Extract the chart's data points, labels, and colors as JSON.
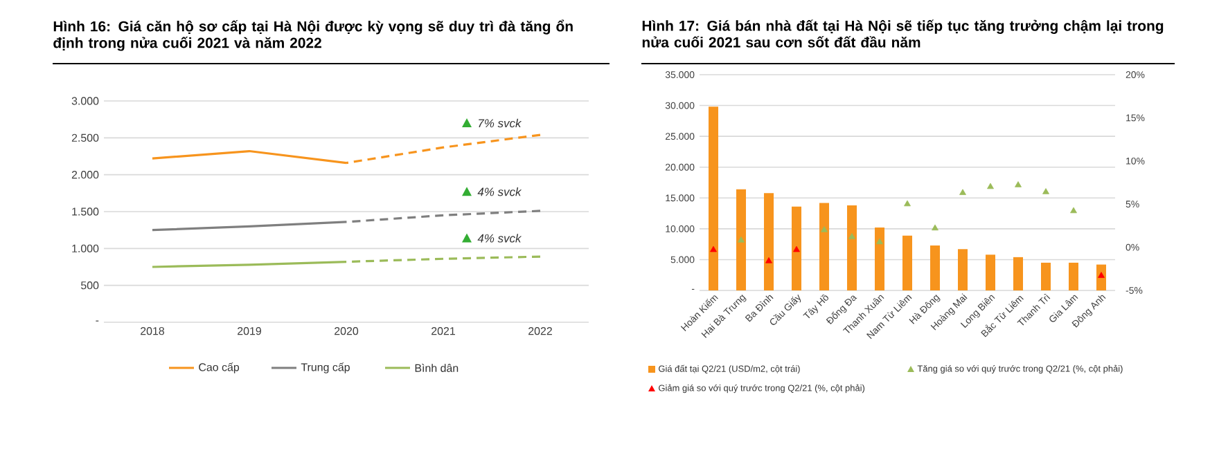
{
  "chart_data": [
    {
      "type": "line",
      "title": "Hình 16: Giá căn hộ sơ cấp tại Hà Nội được kỳ vọng sẽ duy trì đà tăng ổn định trong nửa cuối 2021 và năm 2022",
      "categories": [
        "2018",
        "2019",
        "2020",
        "2021",
        "2022"
      ],
      "ylim": [
        0,
        3000
      ],
      "yticks": [
        {
          "value": 0,
          "label": "-"
        },
        500,
        {
          "value": 1000,
          "label": "1.000"
        },
        {
          "value": 1500,
          "label": "1.500"
        },
        {
          "value": 2000,
          "label": "2.000"
        },
        {
          "value": 2500,
          "label": "2.500"
        },
        {
          "value": 3000,
          "label": "3.000"
        }
      ],
      "grid": "y",
      "legend": "bottom",
      "series": [
        {
          "name": "Cao cấp",
          "color": "#f7941d",
          "line_style": "solid",
          "values": [
            2220,
            2320,
            2160,
            null,
            null
          ]
        },
        {
          "color": "#f7941d",
          "line_style": "dashed",
          "values": [
            null,
            null,
            2160,
            2370,
            2540
          ]
        },
        {
          "name": "Trung cấp",
          "color": "#7f7f7f",
          "line_style": "solid",
          "values": [
            1250,
            1300,
            1360,
            null,
            null
          ]
        },
        {
          "color": "#7f7f7f",
          "line_style": "dashed",
          "values": [
            null,
            null,
            1360,
            1450,
            1510
          ]
        },
        {
          "name": "Bình dân",
          "color": "#9bbb59",
          "line_style": "solid",
          "values": [
            750,
            780,
            820,
            null,
            null
          ]
        },
        {
          "color": "#9bbb59",
          "line_style": "dashed",
          "values": [
            null,
            null,
            820,
            860,
            890
          ]
        }
      ],
      "annotations": [
        "7% svck",
        "4% svck",
        "4% svck"
      ]
    },
    {
      "type": "bar",
      "title": "Hình 17: Giá bán nhà đất tại Hà Nội sẽ tiếp tục tăng trưởng chậm lại trong nửa cuối 2021 sau cơn sốt đất đầu năm",
      "categories": [
        "Hoàn Kiếm",
        "Hai Bà Trưng",
        "Ba Đình",
        "Cầu Giấy",
        "Tây Hồ",
        "Đống Đa",
        "Thanh Xuân",
        "Nam Từ Liêm",
        "Hà Đông",
        "Hoàng Mai",
        "Long Biên",
        "Bắc Từ Liêm",
        "Thanh Trì",
        "Gia Lâm",
        "Đông Anh"
      ],
      "ylim": [
        0,
        35000
      ],
      "yticks": [
        {
          "value": 0,
          "label": "-"
        },
        {
          "value": 5000,
          "label": "5.000"
        },
        {
          "value": 10000,
          "label": "10.000"
        },
        {
          "value": 15000,
          "label": "15.000"
        },
        {
          "value": 20000,
          "label": "20.000"
        },
        {
          "value": 25000,
          "label": "25.000"
        },
        {
          "value": 30000,
          "label": "30.000"
        },
        {
          "value": 35000,
          "label": "35.000"
        }
      ],
      "y2lim": [
        -5,
        20
      ],
      "y2ticks": [
        {
          "value": -5,
          "label": "-5%"
        },
        {
          "value": 0,
          "label": "0%"
        },
        {
          "value": 5,
          "label": "5%"
        },
        {
          "value": 10,
          "label": "10%"
        },
        {
          "value": 15,
          "label": "15%"
        },
        {
          "value": 20,
          "label": "20%"
        }
      ],
      "grid": "y",
      "legend": "bottom",
      "series": [
        {
          "name": "Giá đất tại Q2/21 (USD/m2, cột trái)",
          "color": "#f7941d",
          "values": [
            29800,
            16400,
            15800,
            13600,
            14200,
            13800,
            10200,
            8900,
            7300,
            6700,
            5800,
            5400,
            4500,
            4500,
            4200
          ]
        },
        {
          "name": "Tăng giá so với quý trước trong Q2/21 (%, cột phải)",
          "type": "scatter",
          "axis": "y2",
          "marker": "triangle",
          "color": "#9bbb59",
          "values": [
            null,
            0.8,
            null,
            null,
            2.0,
            1.2,
            0.6,
            5.0,
            2.2,
            6.3,
            7.0,
            7.2,
            6.4,
            4.2,
            null
          ]
        },
        {
          "name": "Giảm giá so với quý trước trong Q2/21 (%, cột phải)",
          "type": "scatter",
          "axis": "y2",
          "marker": "triangle",
          "color": "#ff0000",
          "values": [
            -0.3,
            null,
            -1.6,
            -0.3,
            null,
            null,
            null,
            null,
            null,
            null,
            null,
            null,
            null,
            null,
            -3.3
          ]
        }
      ]
    }
  ]
}
